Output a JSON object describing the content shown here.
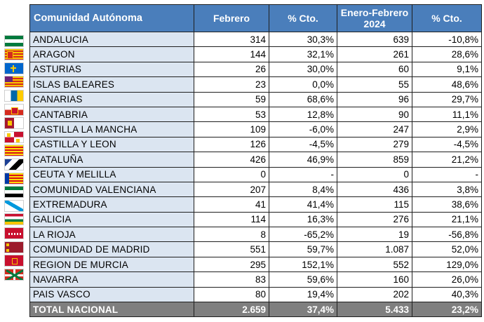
{
  "table": {
    "headers": {
      "region": "Comunidad Autónoma",
      "feb": "Febrero",
      "feb_pct": "% Cto.",
      "ytd_line1": "Enero-Febrero",
      "ytd_line2": "2024",
      "ytd_pct": "% Cto."
    },
    "rows": [
      {
        "name": "ANDALUCIA",
        "feb": "314",
        "feb_pct": "30,3%",
        "ytd": "639",
        "ytd_pct": "-10,8%"
      },
      {
        "name": "ARAGON",
        "feb": "144",
        "feb_pct": "32,1%",
        "ytd": "261",
        "ytd_pct": "28,6%"
      },
      {
        "name": "ASTURIAS",
        "feb": "26",
        "feb_pct": "30,0%",
        "ytd": "60",
        "ytd_pct": "9,1%"
      },
      {
        "name": "ISLAS BALEARES",
        "feb": "23",
        "feb_pct": "0,0%",
        "ytd": "55",
        "ytd_pct": "48,6%"
      },
      {
        "name": "CANARIAS",
        "feb": "59",
        "feb_pct": "68,6%",
        "ytd": "96",
        "ytd_pct": "29,7%"
      },
      {
        "name": "CANTABRIA",
        "feb": "53",
        "feb_pct": "12,8%",
        "ytd": "90",
        "ytd_pct": "11,1%"
      },
      {
        "name": "CASTILLA  LA MANCHA",
        "feb": "109",
        "feb_pct": "-6,0%",
        "ytd": "247",
        "ytd_pct": "2,9%"
      },
      {
        "name": "CASTILLA Y LEON",
        "feb": "126",
        "feb_pct": "-4,5%",
        "ytd": "279",
        "ytd_pct": "-4,5%"
      },
      {
        "name": "CATALUÑA",
        "feb": "426",
        "feb_pct": "46,9%",
        "ytd": "859",
        "ytd_pct": "21,2%"
      },
      {
        "name": "CEUTA Y MELILLA",
        "feb": "0",
        "feb_pct": "-",
        "ytd": "0",
        "ytd_pct": "-"
      },
      {
        "name": "COMUNIDAD VALENCIANA",
        "feb": "207",
        "feb_pct": "8,4%",
        "ytd": "436",
        "ytd_pct": "3,8%"
      },
      {
        "name": "EXTREMADURA",
        "feb": "41",
        "feb_pct": "41,4%",
        "ytd": "115",
        "ytd_pct": "38,6%"
      },
      {
        "name": "GALICIA",
        "feb": "114",
        "feb_pct": "16,3%",
        "ytd": "276",
        "ytd_pct": "21,1%"
      },
      {
        "name": "LA RIOJA",
        "feb": "8",
        "feb_pct": "-65,2%",
        "ytd": "19",
        "ytd_pct": "-56,8%"
      },
      {
        "name": "COMUNIDAD DE MADRID",
        "feb": "551",
        "feb_pct": "59,7%",
        "ytd": "1.087",
        "ytd_pct": "52,0%"
      },
      {
        "name": "REGION DE MURCIA",
        "feb": "295",
        "feb_pct": "152,1%",
        "ytd": "552",
        "ytd_pct": "129,0%"
      },
      {
        "name": "NAVARRA",
        "feb": "83",
        "feb_pct": "59,6%",
        "ytd": "160",
        "ytd_pct": "26,0%"
      },
      {
        "name": "PAIS VASCO",
        "feb": "80",
        "feb_pct": "19,4%",
        "ytd": "202",
        "ytd_pct": "40,3%"
      }
    ],
    "total": {
      "name": "TOTAL NACIONAL",
      "feb": "2.659",
      "feb_pct": "37,4%",
      "ytd": "5.433",
      "ytd_pct": "23,2%"
    }
  },
  "flags": [
    {
      "icon": "andalucia-flag-icon",
      "colors": [
        "#007a3d",
        "#ffffff",
        "#007a3d"
      ]
    },
    {
      "icon": "aragon-flag-icon",
      "colors": [
        "#f7c600",
        "#d52b1e"
      ]
    },
    {
      "icon": "asturias-flag-icon",
      "colors": [
        "#0066cc",
        "#ffcc00"
      ]
    },
    {
      "icon": "baleares-flag-icon",
      "colors": [
        "#f7c600",
        "#d52b1e",
        "#6d2077"
      ]
    },
    {
      "icon": "canarias-flag-icon",
      "colors": [
        "#ffffff",
        "#0068a8",
        "#ffcc00"
      ]
    },
    {
      "icon": "cantabria-flag-icon",
      "colors": [
        "#ffffff",
        "#d52b1e"
      ]
    },
    {
      "icon": "castilla-la-mancha-flag-icon",
      "colors": [
        "#a6192e",
        "#ffffff"
      ]
    },
    {
      "icon": "castilla-y-leon-flag-icon",
      "colors": [
        "#c8102e",
        "#ffffff",
        "#f7c600"
      ]
    },
    {
      "icon": "cataluna-flag-icon",
      "colors": [
        "#fcdd09",
        "#da121a"
      ]
    },
    {
      "icon": "ceuta-melilla-flag-icon",
      "colors": [
        "#1c3f94",
        "#ffffff",
        "#000000"
      ]
    },
    {
      "icon": "valenciana-flag-icon",
      "colors": [
        "#0039a6",
        "#fcdd09",
        "#da121a"
      ]
    },
    {
      "icon": "extremadura-flag-icon",
      "colors": [
        "#007a3d",
        "#ffffff",
        "#000000"
      ]
    },
    {
      "icon": "galicia-flag-icon",
      "colors": [
        "#ffffff",
        "#0099dd"
      ]
    },
    {
      "icon": "la-rioja-flag-icon",
      "colors": [
        "#c8102e",
        "#ffffff",
        "#007a3d",
        "#f7c600"
      ]
    },
    {
      "icon": "madrid-flag-icon",
      "colors": [
        "#c8102e",
        "#ffffff"
      ]
    },
    {
      "icon": "murcia-flag-icon",
      "colors": [
        "#9c1c2c",
        "#f7c600"
      ]
    },
    {
      "icon": "navarra-flag-icon",
      "colors": [
        "#c8102e",
        "#f7c600"
      ]
    },
    {
      "icon": "pais-vasco-flag-icon",
      "colors": [
        "#d52b1e",
        "#007a3d",
        "#ffffff"
      ]
    }
  ],
  "colors": {
    "header_bg": "#4a7ebb",
    "name_col_bg": "#dbe5f1",
    "total_bg": "#7f7f7f"
  }
}
